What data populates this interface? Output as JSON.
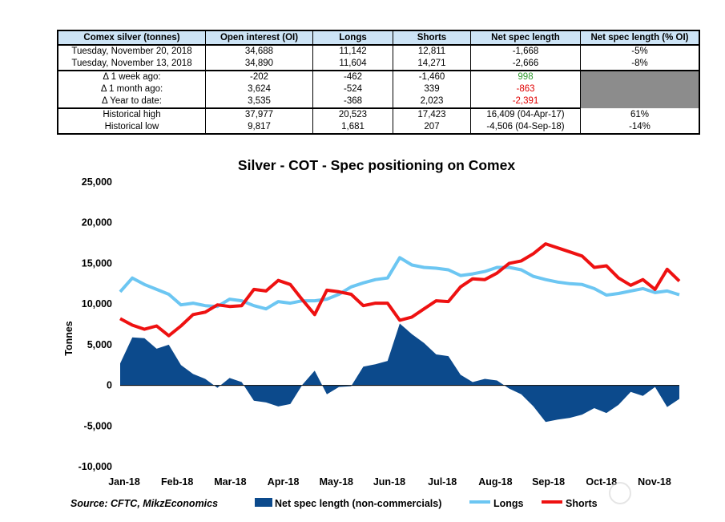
{
  "table": {
    "headers": [
      "Comex silver (tonnes)",
      "Open interest (OI)",
      "Longs",
      "Shorts",
      "Net spec length",
      "Net spec length (% OI)"
    ],
    "rows": [
      [
        "Tuesday, November 20, 2018",
        "34,688",
        "11,142",
        "12,811",
        "-1,668",
        "-5%"
      ],
      [
        "Tuesday, November 13, 2018",
        "34,890",
        "11,604",
        "14,271",
        "-2,666",
        "-8%"
      ],
      [
        "Δ 1 week ago:",
        "-202",
        "-462",
        "-1,460",
        "998",
        ""
      ],
      [
        "Δ 1 month ago:",
        "3,624",
        "-524",
        "339",
        "-863",
        ""
      ],
      [
        "Δ Year to date:",
        "3,535",
        "-368",
        "2,023",
        "-2,391",
        ""
      ],
      [
        "Historical high",
        "37,977",
        "20,523",
        "17,423",
        "16,409  (04-Apr-17)",
        "61%"
      ],
      [
        "Historical low",
        "9,817",
        "1,681",
        "207",
        "-4,506  (04-Sep-18)",
        "-14%"
      ]
    ],
    "positive_color": "#2f9a2f",
    "negative_color": "#e00000",
    "header_bg": "#cde4f6"
  },
  "chart_data": {
    "type": "line",
    "title": "Silver - COT - Spec positioning on Comex",
    "ylabel": "Tonnes",
    "xlabel": "",
    "ylim": [
      -10000,
      25000
    ],
    "yticks": [
      25000,
      20000,
      15000,
      10000,
      5000,
      0,
      -5000,
      -10000
    ],
    "ytick_labels": [
      "25,000",
      "20,000",
      "15,000",
      "10,000",
      "5,000",
      "0",
      "-5,000",
      "-10,000"
    ],
    "x_labels": [
      "Jan-18",
      "Feb-18",
      "Mar-18",
      "Apr-18",
      "May-18",
      "Jun-18",
      "Jul-18",
      "Aug-18",
      "Sep-18",
      "Oct-18",
      "Nov-18"
    ],
    "grid": false,
    "legend_position": "bottom",
    "x": [
      "02-Jan-18",
      "09-Jan-18",
      "16-Jan-18",
      "23-Jan-18",
      "30-Jan-18",
      "06-Feb-18",
      "13-Feb-18",
      "20-Feb-18",
      "27-Feb-18",
      "06-Mar-18",
      "13-Mar-18",
      "20-Mar-18",
      "27-Mar-18",
      "03-Apr-18",
      "10-Apr-18",
      "17-Apr-18",
      "24-Apr-18",
      "01-May-18",
      "08-May-18",
      "15-May-18",
      "22-May-18",
      "29-May-18",
      "05-Jun-18",
      "12-Jun-18",
      "19-Jun-18",
      "26-Jun-18",
      "03-Jul-18",
      "10-Jul-18",
      "17-Jul-18",
      "24-Jul-18",
      "31-Jul-18",
      "07-Aug-18",
      "14-Aug-18",
      "21-Aug-18",
      "28-Aug-18",
      "04-Sep-18",
      "11-Sep-18",
      "18-Sep-18",
      "25-Sep-18",
      "02-Oct-18",
      "09-Oct-18",
      "16-Oct-18",
      "23-Oct-18",
      "30-Oct-18",
      "06-Nov-18",
      "13-Nov-18",
      "20-Nov-18"
    ],
    "series": [
      {
        "name": "Net spec length (non-commercials)",
        "type": "area",
        "color": "#0c4a8c",
        "values": [
          2700,
          5900,
          5800,
          4500,
          5000,
          2500,
          1400,
          800,
          -300,
          900,
          400,
          -1900,
          -2100,
          -2600,
          -2300,
          100,
          1800,
          -1100,
          -200,
          -100,
          2300,
          2600,
          3000,
          7600,
          6300,
          5200,
          3800,
          3600,
          1300,
          400,
          800,
          600,
          -400,
          -1100,
          -2600,
          -4500,
          -4200,
          -4000,
          -3600,
          -2800,
          -3400,
          -2400,
          -800,
          -1300,
          -200,
          -2666,
          -1668
        ]
      },
      {
        "name": "Longs",
        "type": "line",
        "color": "#6cc6f2",
        "values": [
          11500,
          13200,
          12400,
          11800,
          11200,
          9900,
          10100,
          9800,
          9700,
          10600,
          10400,
          9800,
          9400,
          10300,
          10100,
          10400,
          10400,
          10600,
          11200,
          12100,
          12600,
          13000,
          13200,
          15700,
          14800,
          14500,
          14400,
          14200,
          13500,
          13700,
          14000,
          14500,
          14500,
          14200,
          13400,
          13000,
          12700,
          12500,
          12400,
          11900,
          11100,
          11300,
          11600,
          11900,
          11400,
          11604,
          11142
        ]
      },
      {
        "name": "Shorts",
        "type": "line",
        "color": "#ee1111",
        "values": [
          8200,
          7400,
          6900,
          7300,
          6100,
          7300,
          8700,
          9000,
          9900,
          9700,
          9800,
          11800,
          11600,
          12900,
          12400,
          10500,
          8700,
          11700,
          11500,
          11200,
          9800,
          10100,
          10100,
          8000,
          8400,
          9400,
          10400,
          10300,
          12100,
          13100,
          13000,
          13800,
          15000,
          15300,
          16200,
          17400,
          16900,
          16400,
          15900,
          14500,
          14700,
          13200,
          12300,
          13000,
          11800,
          14271,
          12811
        ]
      }
    ]
  },
  "legend": {
    "source": "Source: CFTC, MikzEconomics",
    "items": [
      "Net spec length (non-commercials)",
      "Longs",
      "Shorts"
    ]
  }
}
